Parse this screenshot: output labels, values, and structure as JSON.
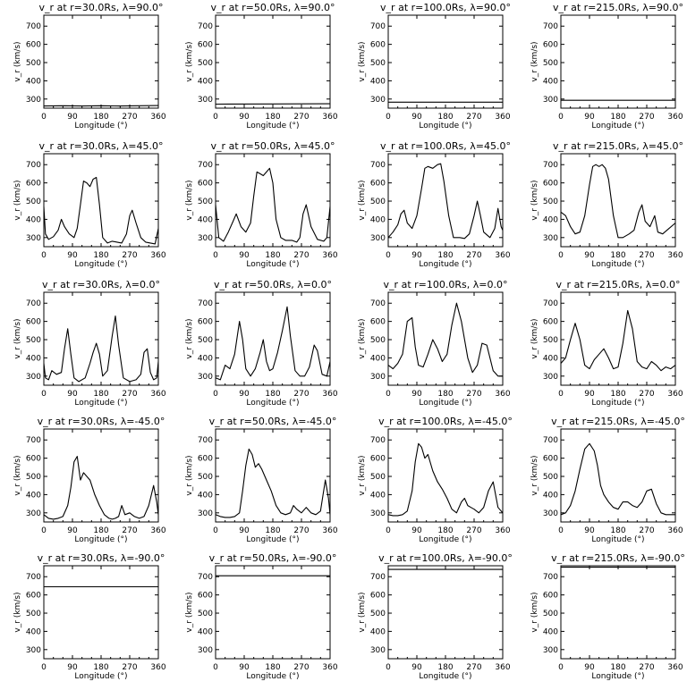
{
  "chart_data": {
    "type": "line",
    "xlabel": "Longitude (°)",
    "ylabel": "v_r (km/s)",
    "xlim": [
      0,
      360
    ],
    "ylim": [
      250,
      760
    ],
    "xticks": [
      0,
      90,
      180,
      270,
      360
    ],
    "yticks": [
      300,
      400,
      500,
      600,
      700
    ],
    "grid": false,
    "panels": [
      {
        "title": "v_r at r=30.0Rs, λ=90.0°",
        "x": [
          0,
          60,
          120,
          180,
          240,
          300,
          360
        ],
        "y": [
          262,
          263,
          262,
          263,
          262,
          263,
          264
        ]
      },
      {
        "title": "v_r at r=50.0Rs, λ=90.0°",
        "x": [
          0,
          180,
          360
        ],
        "y": [
          272,
          273,
          274
        ]
      },
      {
        "title": "v_r at r=100.0Rs, λ=90.0°",
        "x": [
          0,
          180,
          360
        ],
        "y": [
          283,
          283,
          283
        ]
      },
      {
        "title": "v_r at r=215.0Rs, λ=90.0°",
        "x": [
          0,
          180,
          360
        ],
        "y": [
          293,
          293,
          293
        ]
      },
      {
        "title": "v_r at r=30.0Rs, λ=45.0°",
        "x": [
          0,
          5,
          15,
          30,
          45,
          55,
          65,
          80,
          95,
          105,
          115,
          125,
          135,
          145,
          155,
          165,
          175,
          185,
          200,
          215,
          230,
          245,
          260,
          270,
          278,
          290,
          305,
          320,
          335,
          350,
          360
        ],
        "y": [
          470,
          320,
          290,
          305,
          340,
          400,
          360,
          320,
          300,
          350,
          480,
          610,
          600,
          580,
          620,
          630,
          480,
          300,
          270,
          280,
          275,
          270,
          320,
          420,
          450,
          380,
          300,
          275,
          270,
          265,
          350
        ]
      },
      {
        "title": "v_r at r=50.0Rs, λ=45.0°",
        "x": [
          0,
          10,
          25,
          40,
          55,
          65,
          80,
          95,
          110,
          120,
          130,
          140,
          150,
          160,
          170,
          180,
          190,
          205,
          220,
          240,
          255,
          265,
          275,
          285,
          300,
          320,
          340,
          350,
          360
        ],
        "y": [
          480,
          300,
          280,
          330,
          390,
          430,
          360,
          330,
          380,
          530,
          660,
          650,
          640,
          660,
          680,
          600,
          400,
          300,
          285,
          285,
          275,
          300,
          430,
          480,
          360,
          290,
          280,
          300,
          470
        ]
      },
      {
        "title": "v_r at r=100.0Rs, λ=45.0°",
        "x": [
          0,
          15,
          30,
          40,
          50,
          60,
          75,
          90,
          105,
          115,
          125,
          140,
          155,
          165,
          175,
          190,
          205,
          225,
          240,
          255,
          270,
          280,
          290,
          300,
          320,
          335,
          345,
          355,
          360
        ],
        "y": [
          300,
          330,
          370,
          430,
          450,
          380,
          350,
          420,
          570,
          680,
          690,
          680,
          700,
          705,
          610,
          420,
          300,
          300,
          295,
          320,
          420,
          500,
          420,
          330,
          300,
          350,
          460,
          360,
          340
        ]
      },
      {
        "title": "v_r at r=215.0Rs, λ=45.0°",
        "x": [
          0,
          15,
          30,
          45,
          60,
          75,
          90,
          100,
          110,
          120,
          130,
          140,
          150,
          165,
          180,
          195,
          215,
          230,
          245,
          255,
          265,
          280,
          295,
          305,
          320,
          340,
          360
        ],
        "y": [
          440,
          420,
          360,
          320,
          330,
          420,
          590,
          690,
          700,
          690,
          700,
          680,
          620,
          420,
          300,
          300,
          320,
          340,
          440,
          480,
          390,
          360,
          420,
          330,
          320,
          350,
          380
        ]
      },
      {
        "title": "v_r at r=30.0Rs, λ=0.0°",
        "x": [
          0,
          5,
          15,
          25,
          40,
          55,
          65,
          75,
          85,
          95,
          110,
          130,
          145,
          155,
          165,
          175,
          185,
          200,
          215,
          225,
          235,
          250,
          270,
          290,
          305,
          315,
          325,
          335,
          345,
          355,
          360
        ],
        "y": [
          370,
          290,
          280,
          330,
          310,
          320,
          450,
          560,
          420,
          290,
          270,
          290,
          370,
          430,
          480,
          420,
          300,
          330,
          520,
          630,
          470,
          290,
          270,
          280,
          310,
          430,
          450,
          320,
          280,
          290,
          380
        ]
      },
      {
        "title": "v_r at r=50.0Rs, λ=0.0°",
        "x": [
          0,
          15,
          30,
          45,
          60,
          75,
          85,
          95,
          110,
          125,
          140,
          150,
          160,
          170,
          180,
          195,
          210,
          225,
          235,
          250,
          265,
          280,
          295,
          310,
          320,
          335,
          350,
          360
        ],
        "y": [
          290,
          280,
          360,
          340,
          420,
          600,
          500,
          340,
          300,
          340,
          430,
          500,
          380,
          330,
          340,
          430,
          550,
          680,
          520,
          330,
          300,
          300,
          350,
          470,
          440,
          310,
          300,
          380
        ]
      },
      {
        "title": "v_r at r=100.0Rs, λ=0.0°",
        "x": [
          0,
          15,
          30,
          45,
          60,
          75,
          85,
          95,
          110,
          125,
          140,
          155,
          170,
          185,
          200,
          215,
          230,
          250,
          265,
          280,
          295,
          310,
          330,
          345,
          360
        ],
        "y": [
          360,
          340,
          370,
          420,
          600,
          620,
          460,
          360,
          350,
          420,
          500,
          450,
          380,
          420,
          580,
          700,
          600,
          400,
          320,
          360,
          480,
          470,
          330,
          300,
          300
        ]
      },
      {
        "title": "v_r at r=215.0Rs, λ=0.0°",
        "x": [
          0,
          15,
          30,
          45,
          60,
          75,
          90,
          105,
          120,
          135,
          150,
          165,
          180,
          195,
          210,
          225,
          240,
          255,
          270,
          285,
          300,
          315,
          330,
          345,
          360
        ],
        "y": [
          370,
          400,
          500,
          590,
          500,
          360,
          340,
          390,
          420,
          450,
          400,
          340,
          350,
          480,
          660,
          560,
          380,
          350,
          340,
          380,
          360,
          330,
          350,
          340,
          360
        ]
      },
      {
        "title": "v_r at r=30.0Rs, λ=-45.0°",
        "x": [
          0,
          15,
          30,
          45,
          60,
          75,
          85,
          95,
          105,
          115,
          125,
          135,
          145,
          160,
          175,
          190,
          205,
          215,
          225,
          235,
          245,
          255,
          270,
          285,
          300,
          315,
          330,
          345,
          355,
          360
        ],
        "y": [
          290,
          270,
          265,
          270,
          280,
          340,
          440,
          580,
          610,
          480,
          520,
          500,
          480,
          400,
          340,
          290,
          270,
          265,
          270,
          280,
          340,
          290,
          300,
          280,
          270,
          280,
          340,
          450,
          360,
          290
        ]
      },
      {
        "title": "v_r at r=50.0Rs, λ=-45.0°",
        "x": [
          0,
          15,
          30,
          45,
          60,
          75,
          85,
          95,
          105,
          115,
          125,
          135,
          145,
          160,
          175,
          190,
          205,
          220,
          235,
          245,
          255,
          270,
          285,
          300,
          315,
          330,
          345,
          355,
          360
        ],
        "y": [
          290,
          280,
          275,
          275,
          280,
          300,
          420,
          560,
          650,
          620,
          550,
          570,
          540,
          480,
          420,
          340,
          300,
          290,
          300,
          340,
          320,
          300,
          330,
          300,
          290,
          310,
          480,
          380,
          290
        ]
      },
      {
        "title": "v_r at r=100.0Rs, λ=-45.0°",
        "x": [
          0,
          15,
          30,
          45,
          60,
          75,
          85,
          95,
          105,
          115,
          125,
          140,
          155,
          170,
          185,
          200,
          215,
          230,
          240,
          250,
          260,
          270,
          285,
          300,
          315,
          330,
          345,
          360
        ],
        "y": [
          290,
          285,
          285,
          290,
          310,
          420,
          580,
          680,
          660,
          600,
          620,
          530,
          470,
          430,
          380,
          320,
          300,
          360,
          380,
          340,
          330,
          320,
          300,
          330,
          420,
          470,
          330,
          300
        ]
      },
      {
        "title": "v_r at r=215.0Rs, λ=-45.0°",
        "x": [
          0,
          15,
          30,
          45,
          60,
          75,
          90,
          105,
          115,
          125,
          135,
          150,
          165,
          180,
          195,
          210,
          225,
          240,
          255,
          270,
          285,
          300,
          315,
          330,
          345,
          360
        ],
        "y": [
          290,
          300,
          340,
          420,
          540,
          650,
          680,
          640,
          560,
          450,
          400,
          360,
          330,
          320,
          360,
          360,
          340,
          330,
          360,
          420,
          430,
          350,
          300,
          290,
          290,
          290
        ]
      },
      {
        "title": "v_r at r=30.0Rs, λ=-90.0°",
        "x": [
          0,
          180,
          360
        ],
        "y": [
          645,
          645,
          645
        ]
      },
      {
        "title": "v_r at r=50.0Rs, λ=-90.0°",
        "x": [
          0,
          180,
          360
        ],
        "y": [
          705,
          705,
          705
        ]
      },
      {
        "title": "v_r at r=100.0Rs, λ=-90.0°",
        "x": [
          0,
          180,
          360
        ],
        "y": [
          740,
          740,
          740
        ]
      },
      {
        "title": "v_r at r=215.0Rs, λ=-90.0°",
        "x": [
          0,
          180,
          360
        ],
        "y": [
          752,
          752,
          752
        ]
      }
    ]
  }
}
